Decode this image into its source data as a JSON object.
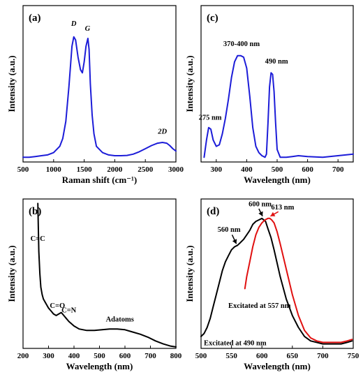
{
  "figure": {
    "line_color": "#000000"
  },
  "chart_data": [
    {
      "type": "line",
      "panel_label": "(a)",
      "xlabel": "Raman shift (cm⁻¹)",
      "ylabel": "Intensity (a.u.)",
      "xlim": [
        500,
        3000
      ],
      "ylim": [
        0,
        1
      ],
      "xticks": [
        500,
        1000,
        1500,
        2000,
        2500,
        3000
      ],
      "grid": false,
      "series": [
        {
          "color": "#1c1cd8",
          "x": [
            500,
            600,
            700,
            800,
            900,
            1000,
            1100,
            1150,
            1200,
            1250,
            1300,
            1330,
            1360,
            1400,
            1440,
            1470,
            1500,
            1530,
            1560,
            1580,
            1600,
            1630,
            1660,
            1700,
            1800,
            1900,
            2000,
            2100,
            2200,
            2300,
            2400,
            2500,
            2600,
            2700,
            2780,
            2850,
            2900,
            2950,
            3000
          ],
          "y": [
            0.03,
            0.03,
            0.035,
            0.04,
            0.045,
            0.06,
            0.1,
            0.15,
            0.26,
            0.48,
            0.74,
            0.8,
            0.78,
            0.67,
            0.59,
            0.57,
            0.64,
            0.74,
            0.79,
            0.72,
            0.5,
            0.3,
            0.18,
            0.1,
            0.06,
            0.045,
            0.04,
            0.04,
            0.042,
            0.05,
            0.065,
            0.085,
            0.105,
            0.12,
            0.125,
            0.12,
            0.105,
            0.085,
            0.07
          ]
        }
      ],
      "annotations": [
        {
          "text": "D",
          "x": 1330,
          "y": 0.87
        },
        {
          "text": "G",
          "x": 1555,
          "y": 0.84
        },
        {
          "text": "2D",
          "x": 2780,
          "y": 0.18
        }
      ]
    },
    {
      "type": "line",
      "panel_label": "(c)",
      "xlabel": "Wavelength (nm)",
      "ylabel": "Intensity (a.u.)",
      "xlim": [
        250,
        750
      ],
      "ylim": [
        0,
        1
      ],
      "xticks": [
        300,
        400,
        500,
        600,
        700
      ],
      "grid": false,
      "series": [
        {
          "color": "#1c1cd8",
          "x": [
            260,
            268,
            275,
            282,
            290,
            300,
            310,
            320,
            330,
            340,
            350,
            360,
            370,
            380,
            390,
            400,
            410,
            420,
            430,
            440,
            450,
            460,
            465,
            470,
            475,
            480,
            485,
            490,
            495,
            500,
            510,
            530,
            550,
            570,
            600,
            650,
            700,
            750
          ],
          "y": [
            0.03,
            0.14,
            0.22,
            0.21,
            0.14,
            0.1,
            0.11,
            0.18,
            0.28,
            0.4,
            0.54,
            0.64,
            0.68,
            0.68,
            0.67,
            0.6,
            0.42,
            0.22,
            0.1,
            0.06,
            0.04,
            0.03,
            0.05,
            0.25,
            0.48,
            0.57,
            0.56,
            0.45,
            0.25,
            0.08,
            0.03,
            0.03,
            0.035,
            0.04,
            0.035,
            0.03,
            0.04,
            0.05
          ]
        }
      ],
      "annotations": [
        {
          "text": "275 nm",
          "x": 280,
          "y": 0.27
        },
        {
          "text": "370-400 nm",
          "x": 383,
          "y": 0.74
        },
        {
          "text": "490 nm",
          "x": 498,
          "y": 0.63
        }
      ]
    },
    {
      "type": "line",
      "panel_label": "(b)",
      "xlabel": "Wavelength (nm)",
      "ylabel": "Intensity (a.u.)",
      "xlim": [
        200,
        800
      ],
      "ylim": [
        0,
        1
      ],
      "xticks": [
        200,
        300,
        400,
        500,
        600,
        700,
        800
      ],
      "grid": false,
      "series": [
        {
          "color": "#000000",
          "x": [
            258,
            262,
            266,
            270,
            275,
            280,
            290,
            300,
            310,
            320,
            330,
            340,
            350,
            360,
            370,
            380,
            400,
            420,
            450,
            480,
            510,
            540,
            570,
            600,
            630,
            660,
            690,
            720,
            750,
            780,
            800
          ],
          "y": [
            0.97,
            0.65,
            0.5,
            0.41,
            0.36,
            0.33,
            0.3,
            0.27,
            0.25,
            0.23,
            0.22,
            0.23,
            0.24,
            0.22,
            0.2,
            0.18,
            0.15,
            0.13,
            0.12,
            0.12,
            0.125,
            0.13,
            0.13,
            0.125,
            0.11,
            0.095,
            0.075,
            0.05,
            0.03,
            0.015,
            0.01
          ]
        }
      ],
      "annotations": [
        {
          "text": "C=C",
          "x": 258,
          "y": 0.72,
          "color": "#2b2bb0"
        },
        {
          "text": "C=O",
          "x": 335,
          "y": 0.27,
          "color": "#2b2bb0"
        },
        {
          "text": "C=N",
          "x": 380,
          "y": 0.24,
          "color": "#2b2bb0"
        },
        {
          "text": "Adatoms",
          "x": 580,
          "y": 0.18,
          "color": "#2b2bb0"
        }
      ]
    },
    {
      "type": "line",
      "panel_label": "(d)",
      "xlabel": "Wavelength (nm)",
      "ylabel": "Intensity (a.u.)",
      "xlim": [
        500,
        750
      ],
      "ylim": [
        0,
        1
      ],
      "xticks": [
        500,
        550,
        600,
        650,
        700,
        750
      ],
      "grid": false,
      "series": [
        {
          "color": "#000000",
          "x": [
            500,
            505,
            510,
            515,
            520,
            525,
            530,
            535,
            540,
            545,
            550,
            555,
            560,
            565,
            570,
            575,
            580,
            585,
            590,
            595,
            600,
            603,
            606,
            610,
            615,
            620,
            625,
            630,
            640,
            650,
            660,
            670,
            680,
            690,
            700,
            710,
            720,
            730,
            740,
            748
          ],
          "y": [
            0.08,
            0.1,
            0.14,
            0.2,
            0.28,
            0.36,
            0.44,
            0.52,
            0.58,
            0.62,
            0.66,
            0.68,
            0.69,
            0.71,
            0.73,
            0.76,
            0.79,
            0.83,
            0.85,
            0.86,
            0.87,
            0.86,
            0.85,
            0.8,
            0.74,
            0.66,
            0.57,
            0.48,
            0.33,
            0.22,
            0.14,
            0.08,
            0.05,
            0.04,
            0.03,
            0.03,
            0.03,
            0.03,
            0.04,
            0.05
          ]
        },
        {
          "color": "#e01010",
          "x": [
            572,
            575,
            580,
            585,
            590,
            595,
            600,
            605,
            610,
            613,
            616,
            620,
            625,
            630,
            640,
            650,
            660,
            670,
            680,
            690,
            700,
            710,
            720,
            730,
            740,
            748
          ],
          "y": [
            0.4,
            0.48,
            0.58,
            0.68,
            0.76,
            0.81,
            0.84,
            0.86,
            0.87,
            0.87,
            0.86,
            0.84,
            0.78,
            0.7,
            0.53,
            0.36,
            0.22,
            0.12,
            0.07,
            0.05,
            0.04,
            0.04,
            0.04,
            0.04,
            0.05,
            0.06
          ]
        }
      ],
      "annotations": [
        {
          "text": "600 nm",
          "x": 597,
          "y": 0.95
        },
        {
          "text": "613 nm",
          "x": 634,
          "y": 0.93,
          "color": "#e01010"
        },
        {
          "text": "560 nm",
          "x": 546,
          "y": 0.78
        },
        {
          "text": "Excitated at 557 nm",
          "x": 596,
          "y": 0.27,
          "color": "#e01010"
        },
        {
          "text": "Excitated at 490 nm",
          "x": 556,
          "y": 0.02
        }
      ]
    }
  ]
}
